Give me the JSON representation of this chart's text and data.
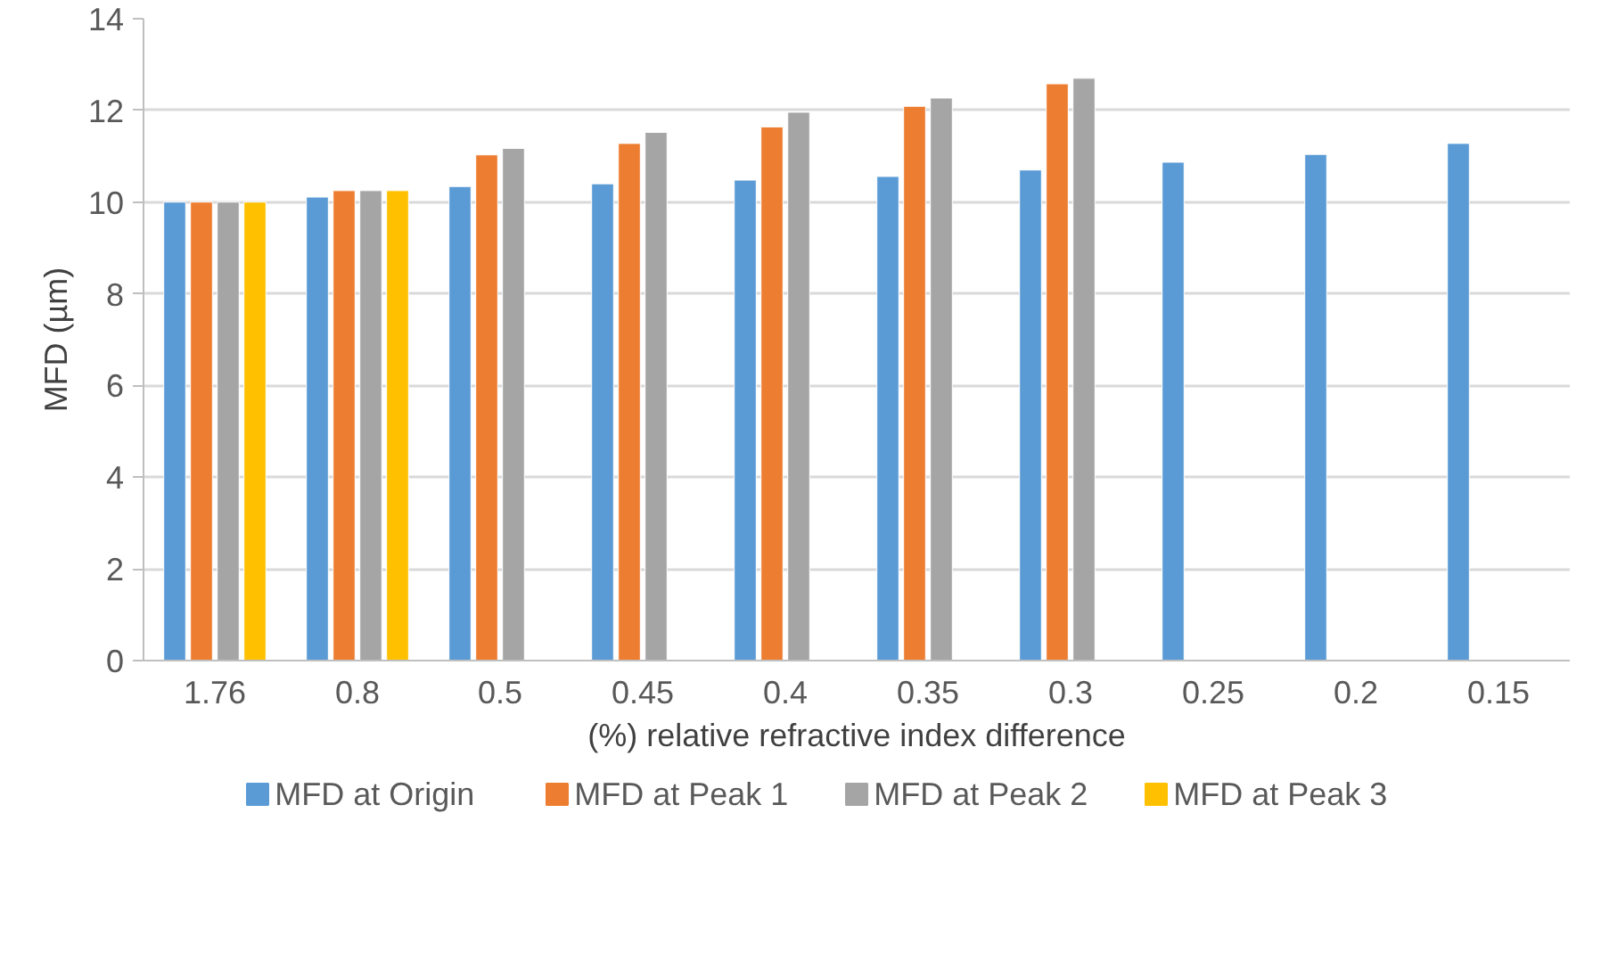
{
  "chart_data": {
    "type": "bar",
    "xlabel": "(%) relative refractive index difference",
    "ylabel": "MFD (µm)",
    "categories": [
      "1.76",
      "0.8",
      "0.5",
      "0.45",
      "0.4",
      "0.35",
      "0.3",
      "0.25",
      "0.2",
      "0.15"
    ],
    "series": [
      {
        "name": "MFD at Origin",
        "color": "#5b9bd5",
        "values": [
          10.0,
          10.11,
          10.34,
          10.4,
          10.48,
          10.56,
          10.7,
          10.87,
          11.04,
          11.28
        ]
      },
      {
        "name": "MFD at Peak 1",
        "color": "#ed7d31",
        "values": [
          10.0,
          10.25,
          11.03,
          11.28,
          11.64,
          12.09,
          12.58,
          null,
          null,
          null
        ]
      },
      {
        "name": "MFD at Peak 2",
        "color": "#a5a5a5",
        "values": [
          10.0,
          10.25,
          11.17,
          11.52,
          11.96,
          12.27,
          12.7,
          null,
          null,
          null
        ]
      },
      {
        "name": "MFD at Peak 3",
        "color": "#ffc000",
        "values": [
          10.0,
          10.25,
          null,
          null,
          null,
          null,
          null,
          null,
          null,
          null
        ]
      }
    ],
    "ylim": [
      0,
      14
    ],
    "yticks": [
      0,
      2,
      4,
      6,
      8,
      10,
      12,
      14
    ],
    "grid": "y",
    "legend": "bottom"
  }
}
